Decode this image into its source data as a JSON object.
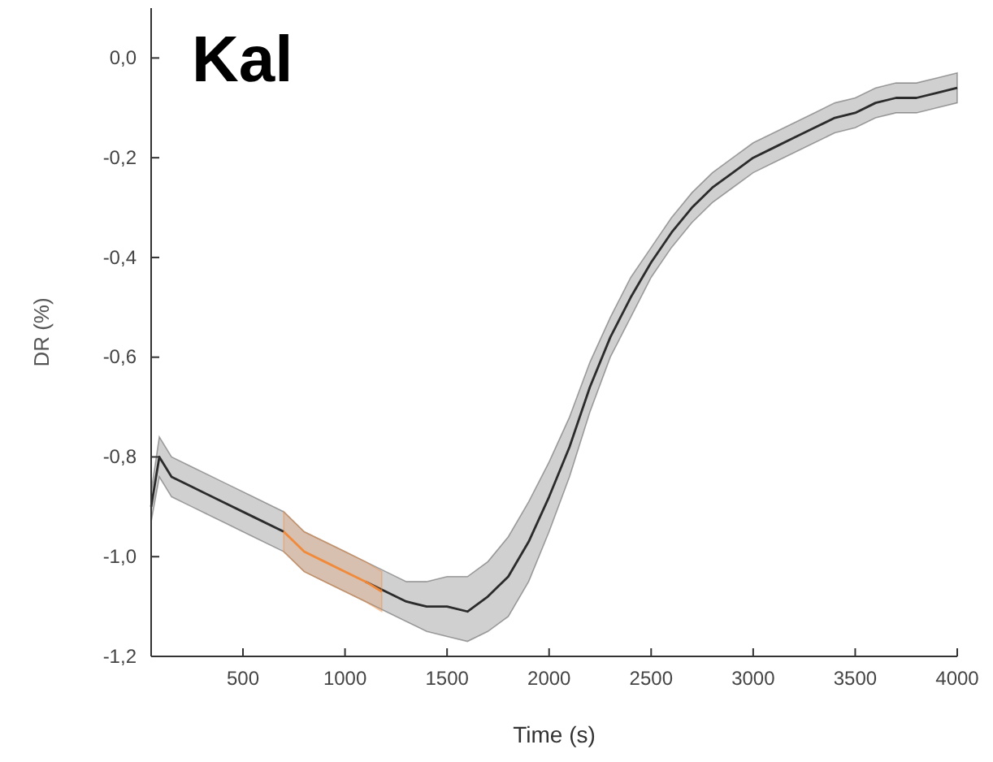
{
  "chart_data": {
    "type": "line",
    "title": "Kal",
    "xlabel": "Time (s)",
    "ylabel": "DR (%)",
    "xlim": [
      50,
      4000
    ],
    "xticks": [
      500,
      1000,
      1500,
      2000,
      2500,
      3000,
      3500,
      4000
    ],
    "ylim": [
      -1.2,
      0.1
    ],
    "yticks": [
      {
        "value": -1.2,
        "label": "-1,2"
      },
      {
        "value": -1.0,
        "label": "-1,0"
      },
      {
        "value": -0.8,
        "label": "-0,8"
      },
      {
        "value": -0.6,
        "label": "-0,6"
      },
      {
        "value": -0.4,
        "label": "-0,4"
      },
      {
        "value": -0.2,
        "label": "-0,2"
      },
      {
        "value": 0.0,
        "label": "0,0"
      }
    ],
    "grid": false,
    "marker": "none",
    "line_style": "solid",
    "series": [
      {
        "color": "#2b2b2b",
        "x": [
          50,
          90,
          150,
          250,
          400,
          550,
          700,
          800,
          900,
          1000,
          1100,
          1200,
          1300,
          1400,
          1500,
          1600,
          1700,
          1800,
          1900,
          2000,
          2100,
          2200,
          2300,
          2400,
          2500,
          2600,
          2700,
          2800,
          2900,
          3000,
          3100,
          3200,
          3300,
          3400,
          3500,
          3600,
          3700,
          3800,
          3900,
          4000
        ],
        "values": [
          -0.9,
          -0.8,
          -0.84,
          -0.86,
          -0.89,
          -0.92,
          -0.95,
          null,
          null,
          null,
          -1.05,
          -1.07,
          -1.09,
          -1.1,
          -1.1,
          -1.11,
          -1.08,
          -1.04,
          -0.97,
          -0.88,
          -0.78,
          -0.66,
          -0.56,
          -0.48,
          -0.41,
          -0.35,
          -0.3,
          -0.26,
          -0.23,
          -0.2,
          -0.18,
          -0.16,
          -0.14,
          -0.12,
          -0.11,
          -0.09,
          -0.08,
          -0.08,
          -0.07,
          -0.06
        ],
        "lower": [
          -0.93,
          -0.84,
          -0.88,
          -0.9,
          -0.93,
          -0.96,
          -0.99,
          -1.03,
          -1.05,
          -1.07,
          -1.09,
          -1.11,
          -1.13,
          -1.15,
          -1.16,
          -1.17,
          -1.15,
          -1.12,
          -1.05,
          -0.95,
          -0.84,
          -0.71,
          -0.6,
          -0.52,
          -0.44,
          -0.38,
          -0.33,
          -0.29,
          -0.26,
          -0.23,
          -0.21,
          -0.19,
          -0.17,
          -0.15,
          -0.14,
          -0.12,
          -0.11,
          -0.11,
          -0.1,
          -0.09
        ],
        "upper": [
          -0.87,
          -0.76,
          -0.8,
          -0.82,
          -0.85,
          -0.88,
          -0.91,
          -0.95,
          -0.97,
          -0.99,
          -1.01,
          -1.03,
          -1.05,
          -1.05,
          -1.04,
          -1.04,
          -1.01,
          -0.96,
          -0.89,
          -0.81,
          -0.72,
          -0.61,
          -0.52,
          -0.44,
          -0.38,
          -0.32,
          -0.27,
          -0.23,
          -0.2,
          -0.17,
          -0.15,
          -0.13,
          -0.11,
          -0.09,
          -0.08,
          -0.06,
          -0.05,
          -0.05,
          -0.04,
          -0.03
        ]
      },
      {
        "color": "#f08a3a",
        "x": [
          700,
          800,
          900,
          1000,
          1100,
          1180
        ],
        "values": [
          -0.95,
          -0.99,
          -1.01,
          -1.03,
          -1.05,
          -1.07
        ],
        "lower": [
          -0.99,
          -1.03,
          -1.05,
          -1.07,
          -1.09,
          -1.11
        ],
        "upper": [
          -0.91,
          -0.95,
          -0.97,
          -0.99,
          -1.01,
          -1.03
        ]
      }
    ]
  }
}
